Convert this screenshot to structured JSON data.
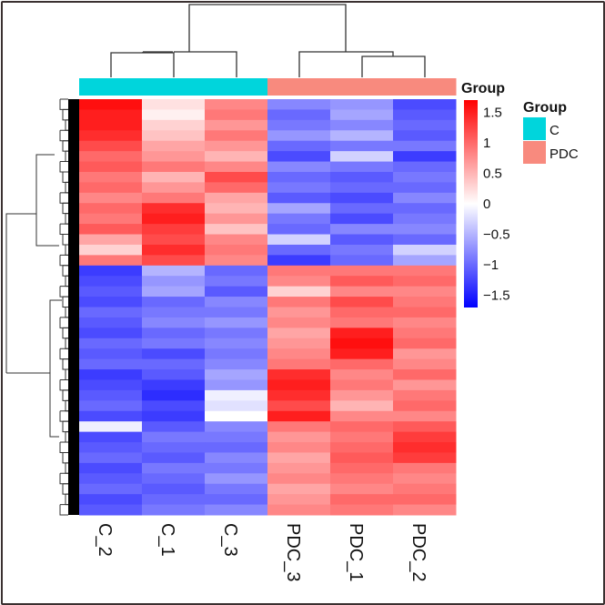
{
  "chart_data": {
    "type": "heatmap",
    "columns": [
      "C_2",
      "C_1",
      "C_3",
      "PDC_3",
      "PDC_1",
      "PDC_2"
    ],
    "column_groups": [
      "C",
      "C",
      "C",
      "PDC",
      "PDC",
      "PDC"
    ],
    "annotation_title": "Group",
    "legend": {
      "colorbar_title": "Group",
      "ticks": [
        1.5,
        1,
        0.5,
        0,
        -0.5,
        -1,
        -1.5
      ],
      "tick_labels": [
        "1.5",
        "1",
        "0.5",
        "0",
        "−0.5",
        "−1",
        "−1.5"
      ],
      "range": [
        -1.7,
        1.7
      ],
      "group_title": "Group",
      "groups": [
        {
          "label": "C",
          "color": "#00D5DC"
        },
        {
          "label": "PDC",
          "color": "#F88A7E"
        }
      ]
    },
    "colors": {
      "low": "#0000FF",
      "mid": "#FFFFFF",
      "high": "#FF0000"
    },
    "values": [
      [
        1.6,
        0.2,
        0.8,
        -0.8,
        -0.7,
        -1.2
      ],
      [
        1.5,
        0.1,
        0.9,
        -1.0,
        -0.6,
        -1.1
      ],
      [
        1.5,
        0.3,
        0.7,
        -0.9,
        -0.8,
        -1.0
      ],
      [
        1.4,
        0.4,
        0.9,
        -0.7,
        -0.5,
        -1.1
      ],
      [
        1.2,
        0.6,
        0.7,
        -1.0,
        -0.9,
        -0.9
      ],
      [
        1.0,
        0.7,
        0.5,
        -1.2,
        -0.3,
        -1.3
      ],
      [
        1.1,
        0.9,
        0.8,
        -0.8,
        -0.9,
        -1.0
      ],
      [
        0.9,
        0.5,
        1.2,
        -1.0,
        -1.1,
        -0.9
      ],
      [
        1.0,
        0.7,
        1.0,
        -0.9,
        -1.0,
        -1.0
      ],
      [
        0.8,
        0.9,
        0.6,
        -1.1,
        -1.2,
        -0.8
      ],
      [
        1.0,
        1.4,
        0.5,
        -0.6,
        -1.0,
        -1.0
      ],
      [
        0.9,
        1.5,
        0.7,
        -0.9,
        -1.2,
        -0.9
      ],
      [
        1.1,
        1.3,
        0.4,
        -1.0,
        -0.8,
        -0.8
      ],
      [
        0.6,
        1.2,
        0.8,
        -0.3,
        -1.1,
        -1.0
      ],
      [
        0.3,
        1.4,
        0.9,
        -1.0,
        -0.9,
        -0.3
      ],
      [
        0.9,
        1.2,
        0.8,
        -1.3,
        -1.0,
        -0.6
      ],
      [
        -1.3,
        -0.5,
        -1.0,
        0.9,
        0.9,
        0.9
      ],
      [
        -1.2,
        -0.7,
        -0.9,
        0.8,
        1.1,
        1.0
      ],
      [
        -1.1,
        -0.6,
        -1.1,
        0.3,
        0.8,
        0.8
      ],
      [
        -1.2,
        -1.0,
        -0.8,
        0.9,
        1.2,
        0.9
      ],
      [
        -1.0,
        -0.9,
        -0.9,
        0.7,
        1.0,
        1.0
      ],
      [
        -1.1,
        -0.8,
        -0.7,
        0.8,
        0.9,
        0.8
      ],
      [
        -1.2,
        -1.0,
        -0.9,
        0.6,
        1.5,
        0.9
      ],
      [
        -1.0,
        -0.9,
        -0.8,
        0.7,
        1.6,
        1.0
      ],
      [
        -1.1,
        -1.2,
        -0.9,
        0.8,
        1.5,
        0.7
      ],
      [
        -1.0,
        -1.0,
        -0.8,
        0.9,
        1.0,
        0.8
      ],
      [
        -1.3,
        -1.1,
        -0.6,
        1.4,
        0.8,
        1.0
      ],
      [
        -1.2,
        -1.3,
        -0.7,
        1.5,
        0.9,
        0.7
      ],
      [
        -1.1,
        -1.4,
        -0.1,
        1.4,
        0.7,
        0.9
      ],
      [
        -1.0,
        -1.2,
        -0.2,
        1.2,
        0.5,
        1.0
      ],
      [
        -1.2,
        -1.3,
        0.0,
        1.5,
        0.8,
        0.8
      ],
      [
        -0.1,
        -1.1,
        -0.8,
        0.9,
        1.0,
        1.1
      ],
      [
        -1.2,
        -0.9,
        -0.9,
        0.7,
        0.9,
        1.3
      ],
      [
        -1.1,
        -1.0,
        -1.0,
        0.8,
        1.0,
        1.4
      ],
      [
        -1.0,
        -1.1,
        -0.8,
        0.6,
        1.1,
        1.3
      ],
      [
        -1.2,
        -0.9,
        -0.9,
        0.7,
        1.0,
        0.9
      ],
      [
        -1.1,
        -1.0,
        -0.7,
        0.8,
        0.9,
        0.8
      ],
      [
        -1.0,
        -1.1,
        -0.9,
        0.6,
        0.8,
        0.9
      ],
      [
        -1.2,
        -1.0,
        -1.0,
        0.7,
        1.0,
        1.0
      ],
      [
        -1.1,
        -0.9,
        -0.8,
        0.8,
        0.9,
        0.8
      ]
    ]
  }
}
